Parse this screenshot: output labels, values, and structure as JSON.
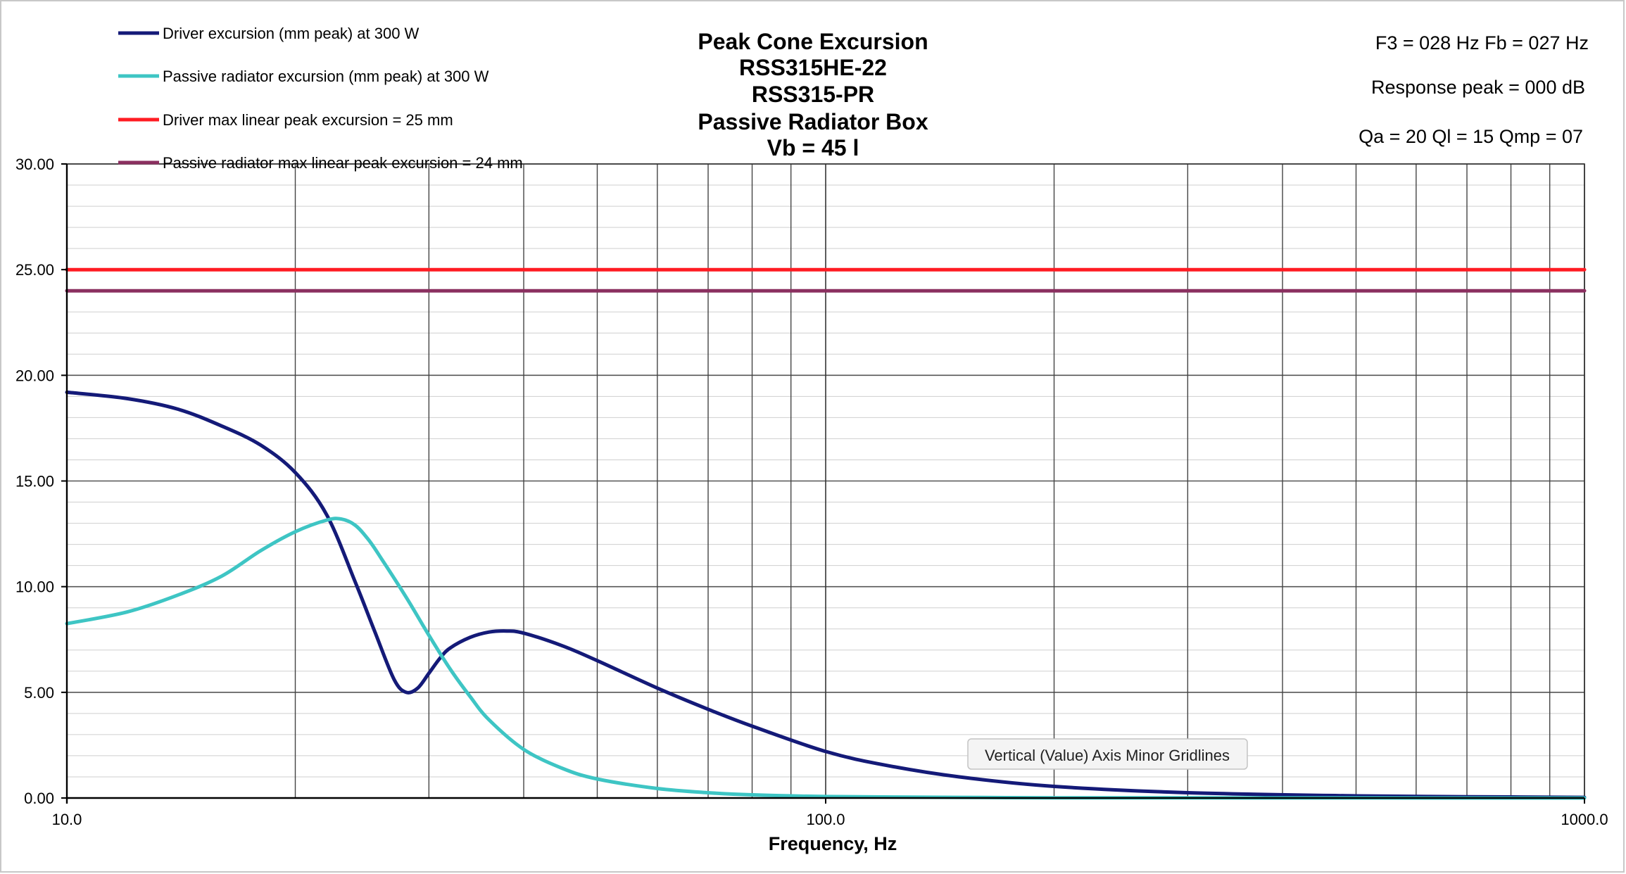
{
  "chart_data": {
    "type": "line",
    "title_lines": [
      "Peak Cone Excursion",
      "RSS315HE-22",
      "RSS315-PR",
      "Passive Radiator Box",
      "Vb = 45 l"
    ],
    "info_lines": [
      "F3 = 028 Hz  Fb = 027 Hz",
      "Response peak = 000 dB",
      "Qa = 20  Ql = 15  Qmp = 07"
    ],
    "xlabel": "Frequency, Hz",
    "ylabel": "",
    "x_scale": "log",
    "xlim": [
      10,
      1000
    ],
    "ylim": [
      0,
      30
    ],
    "x_tick_labels": [
      "10.0",
      "100.0",
      "1000.0"
    ],
    "y_tick_labels": [
      "0.00",
      "5.00",
      "10.00",
      "15.00",
      "20.00",
      "25.00",
      "30.00"
    ],
    "grid": true,
    "legend_position": "top-left",
    "series": [
      {
        "name": "Driver excursion (mm peak) at 300 W",
        "color": "#141a78",
        "x": [
          10,
          12,
          14,
          16,
          18,
          20,
          22,
          24,
          25.5,
          27,
          28,
          29,
          30,
          31,
          32,
          34,
          36,
          38,
          40,
          45,
          50,
          60,
          70,
          80,
          100,
          120,
          150,
          200,
          300,
          500,
          700,
          1000
        ],
        "y": [
          19.2,
          18.9,
          18.4,
          17.6,
          16.7,
          15.4,
          13.4,
          10.2,
          7.8,
          5.6,
          5.0,
          5.2,
          5.9,
          6.6,
          7.1,
          7.6,
          7.85,
          7.9,
          7.8,
          7.2,
          6.5,
          5.2,
          4.2,
          3.4,
          2.2,
          1.55,
          1.0,
          0.55,
          0.25,
          0.1,
          0.06,
          0.03
        ]
      },
      {
        "name": "Passive radiator excursion (mm peak) at 300 W",
        "color": "#3ec5c4",
        "x": [
          10,
          12,
          14,
          16,
          18,
          20,
          22,
          23,
          24,
          25,
          26,
          28,
          30,
          32,
          34,
          36,
          40,
          45,
          50,
          60,
          70,
          80,
          100,
          150,
          200,
          300,
          1000
        ],
        "y": [
          8.25,
          8.8,
          9.6,
          10.5,
          11.7,
          12.6,
          13.15,
          13.2,
          12.9,
          12.2,
          11.3,
          9.5,
          7.7,
          6.1,
          4.8,
          3.7,
          2.3,
          1.4,
          0.9,
          0.45,
          0.25,
          0.15,
          0.07,
          0.03,
          0.01,
          0.005,
          0.0
        ]
      },
      {
        "name": "Driver max linear peak excursion = 25 mm",
        "color": "#ff1c23",
        "x": [
          10,
          1000
        ],
        "y": [
          25,
          25
        ]
      },
      {
        "name": "Passive radiator max linear peak excursion = 24 mm",
        "color": "#8b3060",
        "x": [
          10,
          1000
        ],
        "y": [
          24,
          24
        ]
      }
    ],
    "tooltip": "Vertical (Value) Axis Minor Gridlines"
  }
}
